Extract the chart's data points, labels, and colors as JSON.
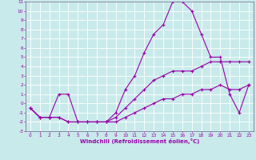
{
  "xlabel": "Windchill (Refroidissement éolien,°C)",
  "background_color": "#c9eaea",
  "grid_color": "#ffffff",
  "line_color": "#9900aa",
  "xmin": 0,
  "xmax": 23,
  "ymin": -3,
  "ymax": 11,
  "line1_y": [
    -0.5,
    -1.5,
    -1.5,
    -1.5,
    -2.0,
    -2.0,
    -2.0,
    -2.0,
    -2.0,
    -2.0,
    -1.5,
    -1.0,
    -0.5,
    0.0,
    0.5,
    0.5,
    1.0,
    1.0,
    1.5,
    1.5,
    2.0,
    1.5,
    1.5,
    2.0
  ],
  "line2_y": [
    -0.5,
    -1.5,
    -1.5,
    -1.5,
    -2.0,
    -2.0,
    -2.0,
    -2.0,
    -2.0,
    -1.5,
    -0.5,
    0.5,
    1.5,
    2.5,
    3.0,
    3.5,
    3.5,
    3.5,
    4.0,
    4.5,
    4.5,
    4.5,
    4.5,
    4.5
  ],
  "line3_y": [
    -0.5,
    -1.5,
    -1.5,
    1.0,
    1.0,
    -2.0,
    -2.0,
    -2.0,
    -2.0,
    -1.0,
    1.5,
    3.0,
    5.5,
    7.5,
    8.5,
    11.0,
    11.0,
    10.0,
    7.5,
    5.0,
    5.0,
    1.0,
    -1.0,
    2.0
  ],
  "tick_fontsize": 4.2,
  "xlabel_fontsize": 5.0
}
